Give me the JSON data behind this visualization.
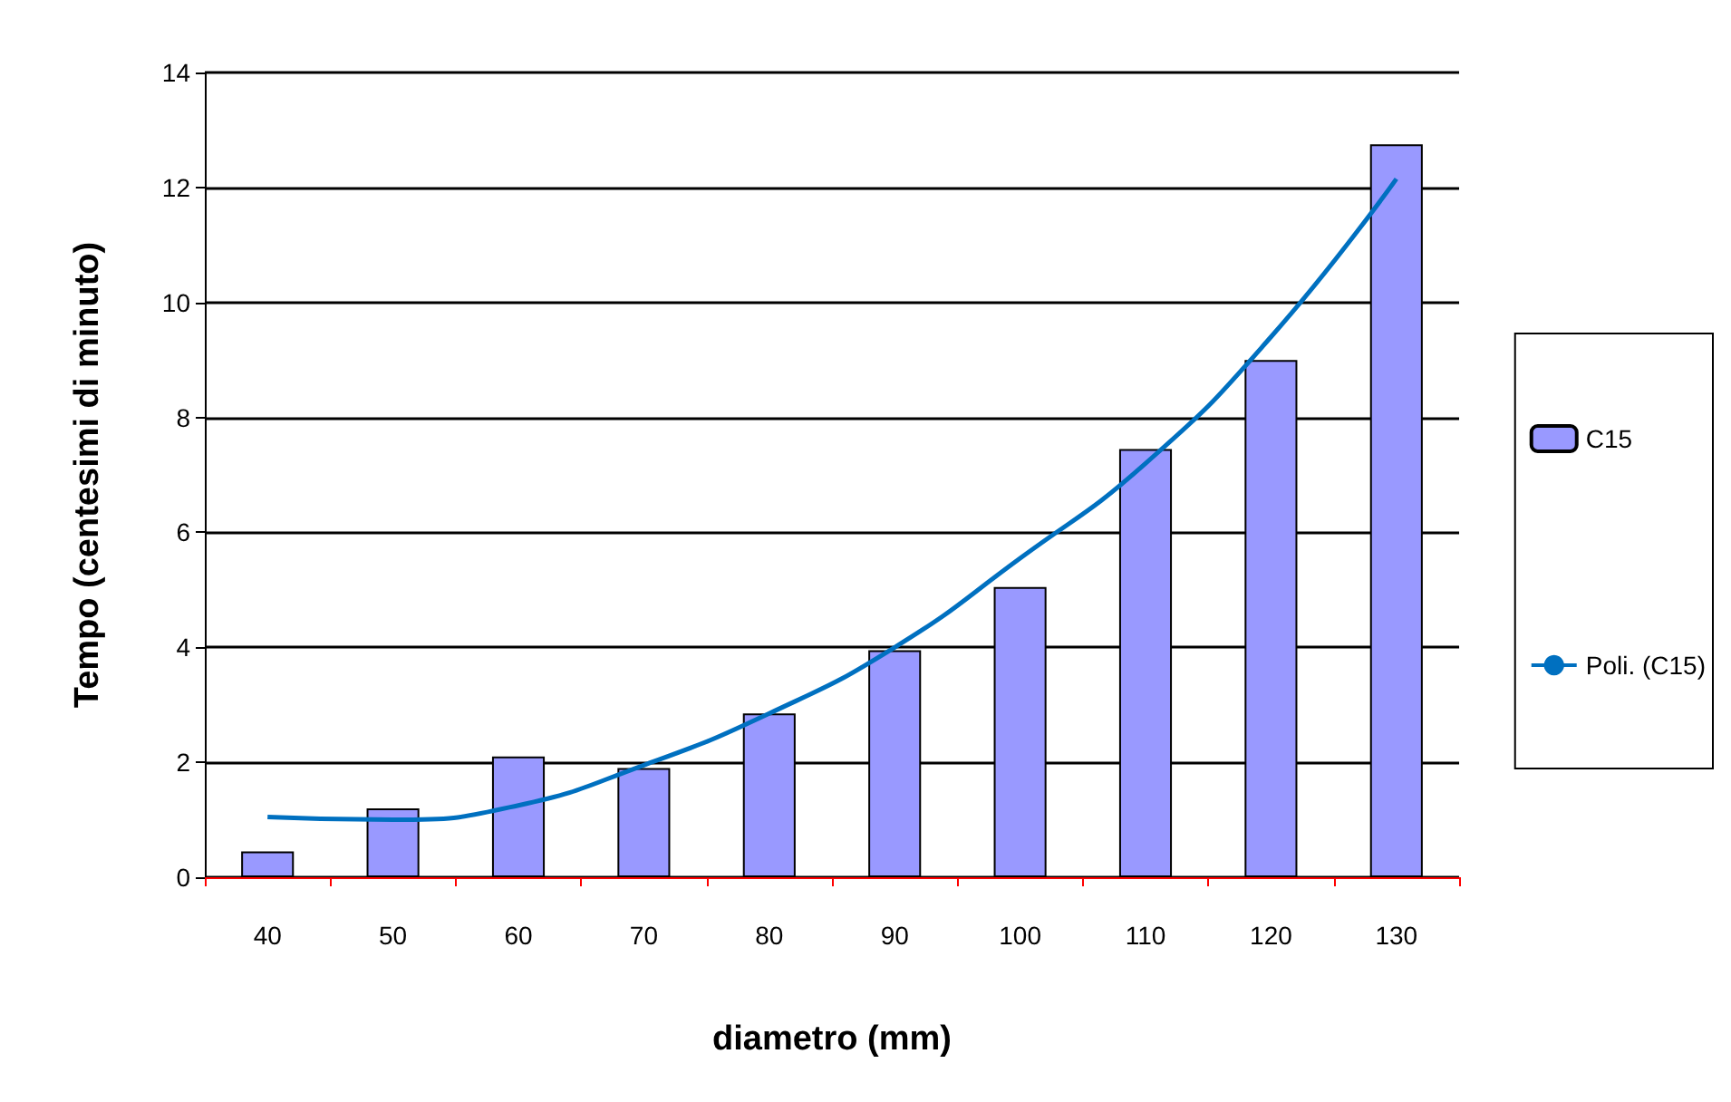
{
  "chart_data": {
    "type": "bar",
    "xlabel": "diametro (mm)",
    "ylabel": "Tempo (centesimi di minuto)",
    "categories": [
      "40",
      "50",
      "60",
      "70",
      "80",
      "90",
      "100",
      "110",
      "120",
      "130"
    ],
    "series": [
      {
        "name": "C15",
        "color": "#9999ff",
        "values": [
          0.45,
          1.2,
          2.1,
          1.9,
          2.85,
          3.95,
          5.05,
          7.45,
          9.0,
          12.75
        ]
      },
      {
        "name": "Poli. (C15)",
        "type": "line",
        "color": "#0070c0",
        "values": [
          1.05,
          1.0,
          1.25,
          1.95,
          2.85,
          4.0,
          5.55,
          7.2,
          9.4,
          12.15
        ]
      }
    ],
    "ylim": [
      0,
      14
    ],
    "yticks": [
      0,
      2,
      4,
      6,
      8,
      10,
      12,
      14
    ],
    "grid": "y",
    "legend": "right",
    "marker": "none",
    "line_style": "solid"
  }
}
